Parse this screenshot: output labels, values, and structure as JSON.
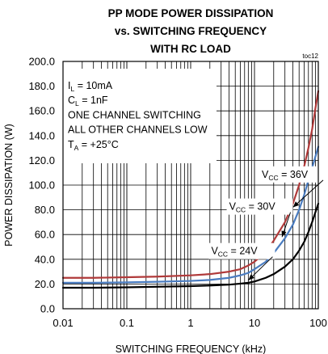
{
  "chart_data": {
    "type": "line",
    "title_lines": [
      "PP MODE POWER DISSIPATION",
      "vs. SWITCHING FREQUENCY",
      "WITH RC LOAD"
    ],
    "figure_tag": "toc12",
    "xlabel": "SWITCHING FREQUENCY (kHz)",
    "ylabel": "POWER DISSIPATION (W)",
    "xscale": "log",
    "xlim": [
      0.01,
      100
    ],
    "ylim": [
      0,
      200
    ],
    "x_ticks": [
      {
        "value": 0.01,
        "label": "0.01"
      },
      {
        "value": 0.1,
        "label": "0.1"
      },
      {
        "value": 1,
        "label": "1"
      },
      {
        "value": 10,
        "label": "10"
      },
      {
        "value": 100,
        "label": "100"
      }
    ],
    "y_ticks": [
      {
        "value": 0,
        "label": "0.0"
      },
      {
        "value": 20,
        "label": "20.0"
      },
      {
        "value": 40,
        "label": "40.0"
      },
      {
        "value": 60,
        "label": "60.0"
      },
      {
        "value": 80,
        "label": "80.0"
      },
      {
        "value": 100,
        "label": "100.0"
      },
      {
        "value": 120,
        "label": "120.0"
      },
      {
        "value": 140,
        "label": "140.0"
      },
      {
        "value": 160,
        "label": "160.0"
      },
      {
        "value": 180,
        "label": "180.0"
      },
      {
        "value": 200,
        "label": "200.0"
      }
    ],
    "grid": true,
    "conditions": [
      {
        "main": "I",
        "sub": "L",
        "rest": " = 10mA"
      },
      {
        "main": "C",
        "sub": "L",
        "rest": " = 1nF"
      },
      {
        "main": "ONE CHANNEL SWITCHING",
        "sub": "",
        "rest": ""
      },
      {
        "main": "ALL OTHER CHANNELS LOW",
        "sub": "",
        "rest": ""
      },
      {
        "main": "T",
        "sub": "A",
        "rest": " = +25°C"
      }
    ],
    "series": [
      {
        "label_main": "V",
        "label_sub": "CC",
        "label_rest": " = 36V",
        "color": "#b03a3a",
        "label_anchor": {
          "x": 13,
          "y": 106
        },
        "arrow_to": {
          "x": 40,
          "y": 82
        },
        "x": [
          0.01,
          0.03,
          0.1,
          0.3,
          1,
          2,
          4,
          6,
          8,
          10,
          15,
          20,
          30,
          40,
          50,
          60,
          70,
          80,
          90,
          100
        ],
        "y": [
          25,
          25,
          25.5,
          26,
          27,
          28,
          30,
          32,
          35,
          38,
          46,
          55,
          70,
          85,
          100,
          115,
          130,
          145,
          162,
          176
        ]
      },
      {
        "label_main": "V",
        "label_sub": "CC",
        "label_rest": " = 30V",
        "color": "#4a7cc0",
        "label_anchor": {
          "x": 4,
          "y": 80
        },
        "arrow_to": {
          "x": 27,
          "y": 58
        },
        "x": [
          0.01,
          0.03,
          0.1,
          0.3,
          1,
          2,
          4,
          6,
          8,
          10,
          15,
          20,
          30,
          40,
          50,
          60,
          70,
          80,
          90,
          100
        ],
        "y": [
          21,
          21,
          21.3,
          21.8,
          22.5,
          23.3,
          25,
          27,
          29,
          32,
          38,
          45,
          57,
          68,
          80,
          92,
          104,
          114,
          123,
          131
        ]
      },
      {
        "label_main": "V",
        "label_sub": "CC",
        "label_rest": " = 24V",
        "color": "#000000",
        "label_anchor": {
          "x": 2.1,
          "y": 44
        },
        "arrow_to": {
          "x": 8,
          "y": 23
        },
        "x": [
          0.01,
          0.03,
          0.1,
          0.3,
          1,
          2,
          4,
          6,
          8,
          10,
          15,
          20,
          30,
          40,
          50,
          60,
          70,
          80,
          90,
          100
        ],
        "y": [
          17,
          17,
          17.3,
          17.8,
          18.3,
          18.8,
          19.5,
          20.3,
          21,
          22,
          25,
          28,
          34,
          40,
          47,
          54,
          62,
          70,
          78,
          85
        ]
      }
    ]
  }
}
